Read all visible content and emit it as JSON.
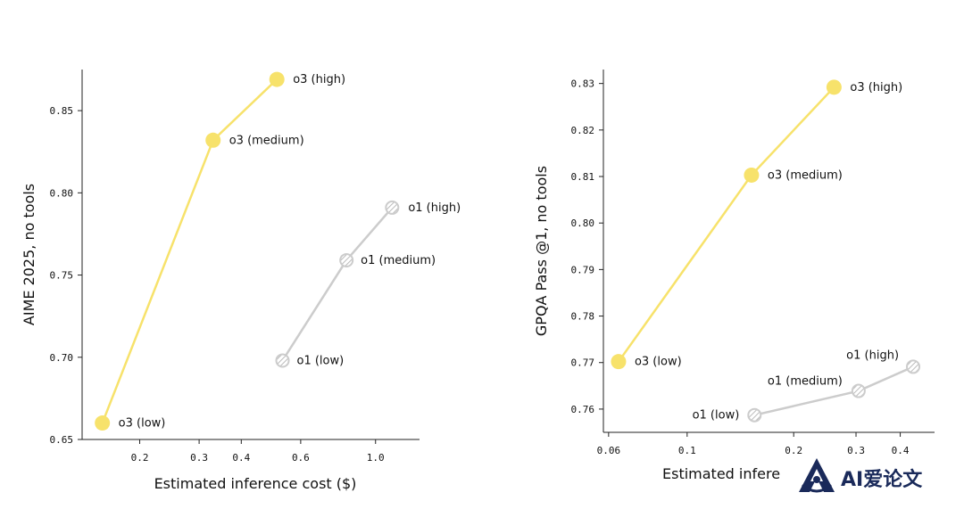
{
  "chart_data": [
    {
      "type": "line",
      "xlabel": "Estimated inference cost ($)",
      "ylabel": "AIME 2025, no tools",
      "xscale": "log",
      "xlim": [
        0.135,
        1.35
      ],
      "ylim": [
        0.65,
        0.875
      ],
      "xticks": [
        0.2,
        0.3,
        0.4,
        0.6,
        1.0
      ],
      "xtick_labels": [
        "0.2",
        "0.3",
        "0.4",
        "0.6",
        "1.0"
      ],
      "yticks": [
        0.65,
        0.7,
        0.75,
        0.8,
        0.85
      ],
      "ytick_labels": [
        "0.65",
        "0.70",
        "0.75",
        "0.80",
        "0.85"
      ],
      "grid": false,
      "series": [
        {
          "color": "#f7e26b",
          "marker": "filled-circle",
          "points": [
            {
              "x": 0.155,
              "y": 0.66,
              "label": "o3 (low)"
            },
            {
              "x": 0.33,
              "y": 0.832,
              "label": "o3 (medium)"
            },
            {
              "x": 0.51,
              "y": 0.869,
              "label": "o3 (high)"
            }
          ]
        },
        {
          "color": "#cccccc",
          "marker": "hatched-circle",
          "points": [
            {
              "x": 0.53,
              "y": 0.698,
              "label": "o1 (low)"
            },
            {
              "x": 0.82,
              "y": 0.759,
              "label": "o1 (medium)"
            },
            {
              "x": 1.12,
              "y": 0.791,
              "label": "o1 (high)"
            }
          ]
        }
      ]
    },
    {
      "type": "line",
      "xlabel": "Estimated infere",
      "ylabel": "GPQA Pass @1, no tools",
      "xscale": "log",
      "xlim": [
        0.058,
        0.5
      ],
      "ylim": [
        0.755,
        0.833
      ],
      "xticks": [
        0.06,
        0.1,
        0.2,
        0.3,
        0.4
      ],
      "xtick_labels": [
        "0.06",
        "0.1",
        "0.2",
        "0.3",
        "0.4"
      ],
      "yticks": [
        0.76,
        0.77,
        0.78,
        0.79,
        0.8,
        0.81,
        0.82,
        0.83
      ],
      "ytick_labels": [
        "0.76",
        "0.77",
        "0.78",
        "0.79",
        "0.80",
        "0.81",
        "0.82",
        "0.83"
      ],
      "grid": false,
      "series": [
        {
          "color": "#f7e26b",
          "marker": "filled-circle",
          "points": [
            {
              "x": 0.064,
              "y": 0.7702,
              "label": "o3 (low)"
            },
            {
              "x": 0.152,
              "y": 0.8103,
              "label": "o3 (medium)"
            },
            {
              "x": 0.26,
              "y": 0.8292,
              "label": "o3 (high)"
            }
          ]
        },
        {
          "color": "#cccccc",
          "marker": "hatched-circle",
          "points": [
            {
              "x": 0.155,
              "y": 0.7587,
              "label": "o1 (low)"
            },
            {
              "x": 0.305,
              "y": 0.7639,
              "label": "o1 (medium)"
            },
            {
              "x": 0.435,
              "y": 0.7691,
              "label": "o1 (high)"
            }
          ]
        }
      ]
    }
  ],
  "watermark": {
    "text": "AI爱论文",
    "icon": "ai-paper-logo-icon"
  }
}
